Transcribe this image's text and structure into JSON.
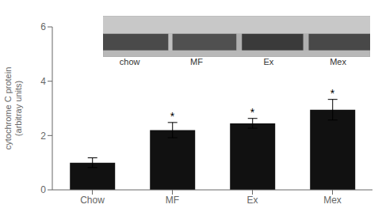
{
  "chart_data": {
    "type": "bar",
    "ylabel": "cytochrome C protein\n(arbitray units)",
    "categories": [
      "Chow",
      "MF",
      "Ex",
      "Mex"
    ],
    "values": [
      1.0,
      2.2,
      2.45,
      2.95
    ],
    "errors": [
      0.18,
      0.28,
      0.18,
      0.38
    ],
    "color": "#111111",
    "ylim": [
      0,
      6
    ],
    "yticks": [
      0,
      2,
      4,
      6
    ],
    "grid": false,
    "annotations": [
      {
        "text": "*",
        "category": "MF"
      },
      {
        "text": "*",
        "category": "Ex"
      },
      {
        "text": "*",
        "category": "Mex"
      },
      {
        "text": "chow"
      },
      {
        "text": "MF"
      },
      {
        "text": "Ex"
      },
      {
        "text": "Mex"
      }
    ]
  }
}
